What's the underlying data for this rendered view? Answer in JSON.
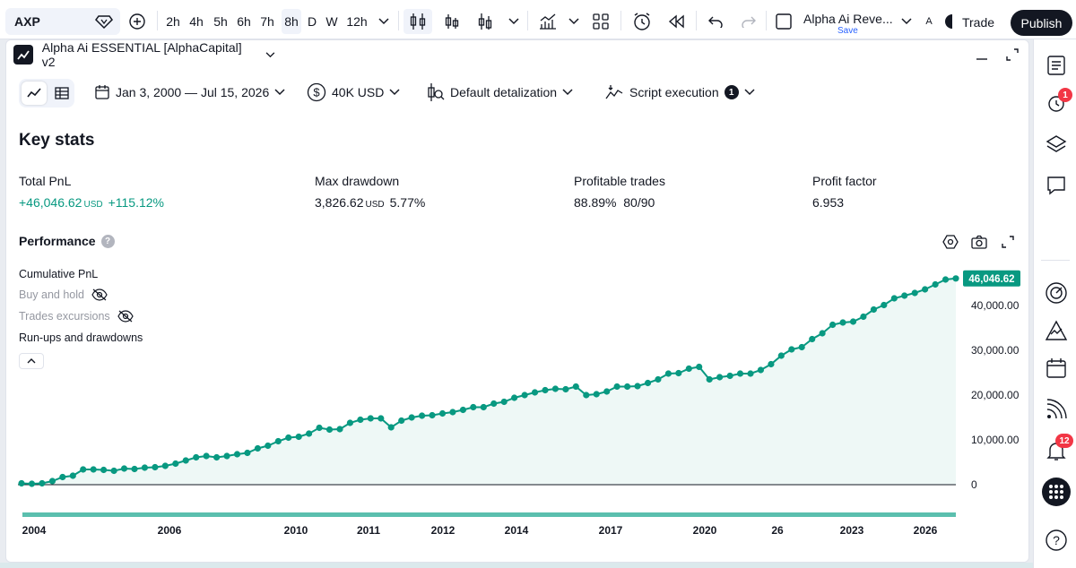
{
  "toolbar": {
    "symbol": "AXP",
    "intervals": [
      "2h",
      "4h",
      "5h",
      "6h",
      "7h",
      "8h",
      "D",
      "W",
      "12h"
    ],
    "active_interval": "8h",
    "layout_name": "Alpha Ai Reve...",
    "layout_save": "Save",
    "lang_label": "A",
    "trade_label": "Trade",
    "publish_label": "Publish"
  },
  "panel": {
    "strategy_name": "Alpha Ai ESSENTIAL [AlphaCapital] v2",
    "date_range": "Jan 3, 2000 — Jul 15, 2026",
    "capital": "40K USD",
    "detalization": "Default detalization",
    "execution": "Script execution",
    "execution_count": "1"
  },
  "key_stats": {
    "title": "Key stats",
    "total_pnl": {
      "label": "Total PnL",
      "value": "+46,046.62",
      "unit": "USD",
      "pct": "+115.12%"
    },
    "max_drawdown": {
      "label": "Max drawdown",
      "value": "3,826.62",
      "unit": "USD",
      "pct": "5.77%"
    },
    "profitable_trades": {
      "label": "Profitable trades",
      "pct": "88.89%",
      "ratio": "80/90"
    },
    "profit_factor": {
      "label": "Profit factor",
      "value": "6.953"
    }
  },
  "performance": {
    "title": "Performance",
    "help": "?",
    "legend": {
      "cumulative": "Cumulative PnL",
      "buy_hold": "Buy and hold",
      "excursions": "Trades excursions",
      "runups": "Run-ups and drawdowns"
    }
  },
  "sidebar": {
    "alerts_badge": "1",
    "notifications_badge": "12"
  },
  "colors": {
    "accent": "#089981",
    "area_fill": "#e8f6f3",
    "dark": "#131722",
    "badge": "#f23645"
  },
  "chart_data": {
    "type": "line",
    "title": "",
    "series": [
      {
        "name": "Cumulative PnL",
        "values": [
          300,
          200,
          300,
          800,
          1700,
          2000,
          3400,
          3400,
          3300,
          3100,
          3600,
          3500,
          3800,
          3900,
          4200,
          4700,
          5400,
          6100,
          6400,
          6100,
          6400,
          6800,
          7100,
          8100,
          8700,
          9700,
          10500,
          10700,
          11400,
          12700,
          12300,
          12400,
          13800,
          14500,
          14800,
          14800,
          12800,
          14300,
          15000,
          15400,
          15500,
          15900,
          16200,
          16700,
          17300,
          17300,
          18100,
          18500,
          19400,
          20000,
          20600,
          21100,
          21400,
          21300,
          21900,
          20000,
          20200,
          20800,
          21900,
          21900,
          22000,
          22700,
          23500,
          24800,
          24900,
          25900,
          26300,
          23500,
          24000,
          24300,
          24800,
          24800,
          25600,
          26900,
          28800,
          30200,
          30700,
          32500,
          33800,
          35700,
          36200,
          36400,
          37500,
          39100,
          40100,
          41600,
          42200,
          42800,
          43600,
          44700,
          45800,
          46046.62
        ]
      }
    ],
    "x_tick_labels": [
      "2004",
      "2006",
      "2010",
      "2011",
      "2012",
      "2014",
      "2017",
      "2020",
      "26",
      "2023",
      "2026"
    ],
    "y_tick_labels": [
      "0",
      "10,000.00",
      "20,000.00",
      "30,000.00",
      "40,000.00"
    ],
    "last_value_label": "46,046.62",
    "ylim": [
      0,
      50000
    ],
    "grid": false
  }
}
